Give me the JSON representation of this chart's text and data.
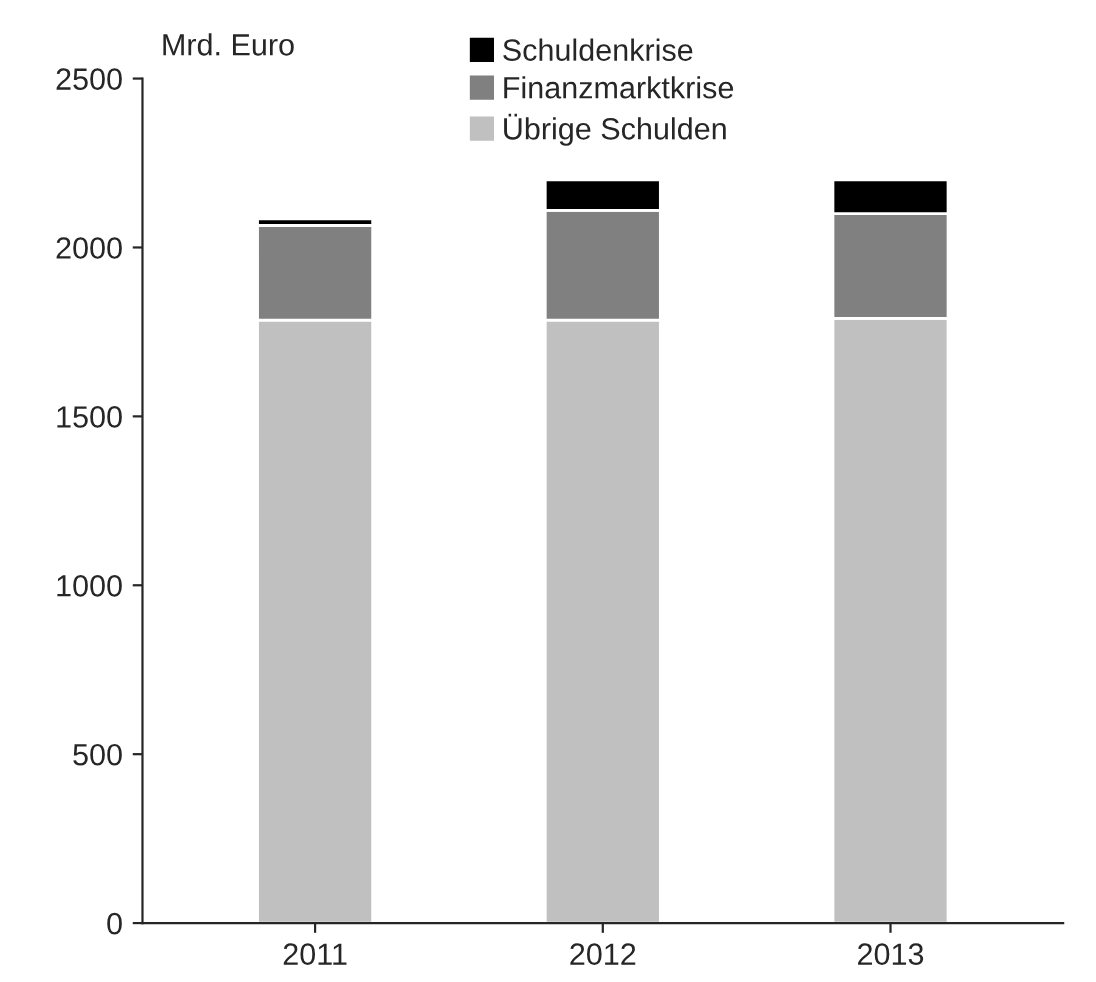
{
  "chart_data": {
    "type": "bar",
    "stacked": true,
    "ylabel": "Mrd. Euro",
    "categories": [
      "2011",
      "2012",
      "2013"
    ],
    "series": [
      {
        "name": "Übrige Schulden",
        "color": "#c0c0c0",
        "values": [
          1785,
          1785,
          1790
        ]
      },
      {
        "name": "Finanzmarktkrise",
        "color": "#808080",
        "values": [
          280,
          325,
          310
        ]
      },
      {
        "name": "Schuldenkrise",
        "color": "#000000",
        "values": [
          20,
          90,
          100
        ]
      }
    ],
    "ylim": [
      0,
      2500
    ],
    "yticks": [
      0,
      500,
      1000,
      1500,
      2000,
      2500
    ],
    "grid": false,
    "legend": "top"
  }
}
